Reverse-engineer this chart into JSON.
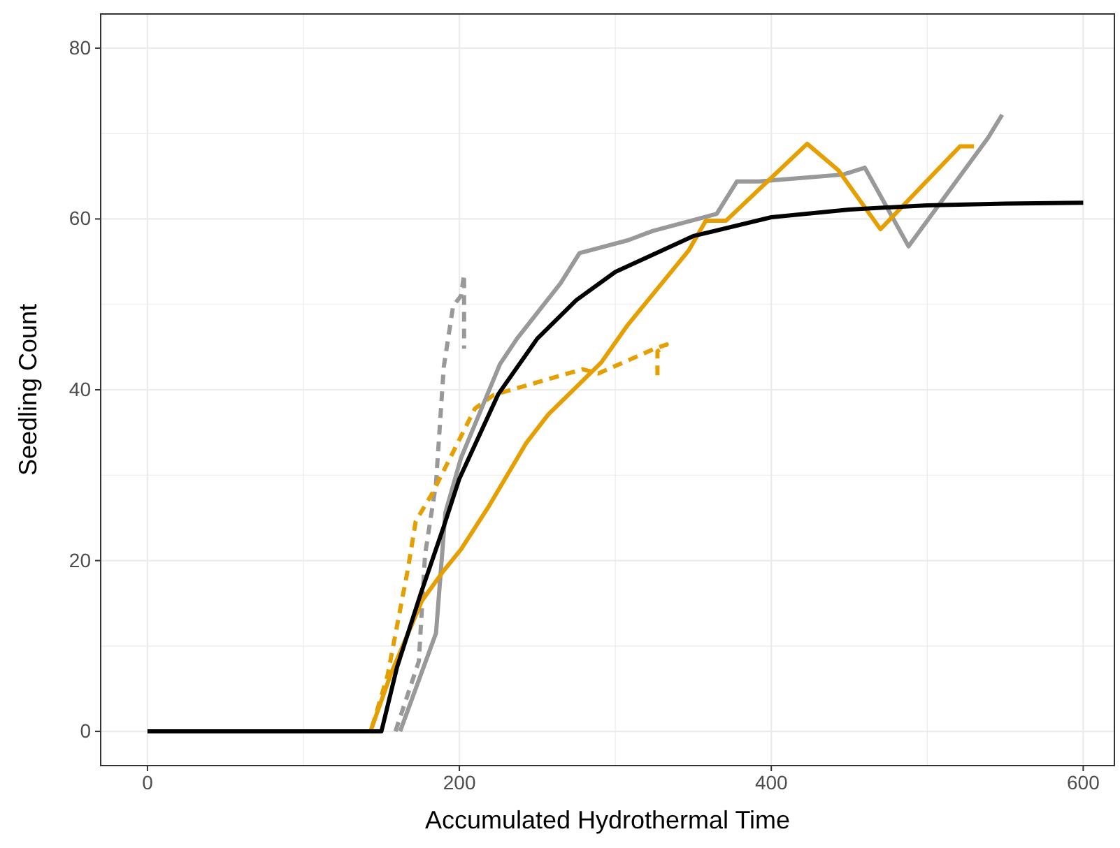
{
  "chart_data": {
    "type": "line",
    "xlabel": "Accumulated Hydrothermal Time",
    "ylabel": "Seedling Count",
    "xlim": [
      -30,
      620
    ],
    "ylim": [
      -4,
      84
    ],
    "xticks": [
      0,
      {
        "value": 100,
        "label": null
      },
      200,
      {
        "value": 300,
        "label": null
      },
      400,
      {
        "value": 500,
        "label": null
      },
      600
    ],
    "yticks": [
      0,
      {
        "value": 10,
        "label": null
      },
      20,
      {
        "value": 30,
        "label": null
      },
      40,
      {
        "value": 50,
        "label": null
      },
      60,
      {
        "value": 70,
        "label": null
      },
      80
    ],
    "grid": true,
    "marker": "none",
    "series": [
      {
        "color": "#999999",
        "line_style": "dashed",
        "x": [
          159,
          174,
          178,
          185,
          190,
          196,
          201,
          203,
          203
        ],
        "values": [
          0,
          8.2,
          20.7,
          29,
          42.7,
          49.8,
          51,
          53.5,
          44.8
        ]
      },
      {
        "color": "#e69f00",
        "line_style": "dashed",
        "x": [
          144,
          154,
          167,
          172,
          183,
          210,
          222,
          279,
          289,
          325,
          333,
          327,
          327
        ],
        "values": [
          0.5,
          6.6,
          19,
          24.6,
          28,
          37.8,
          39.4,
          42.4,
          41.9,
          44.8,
          45.3,
          44.5,
          41
        ]
      },
      {
        "color": "#999999",
        "line_style": "solid",
        "x": [
          162,
          185,
          191,
          201,
          226,
          237,
          265,
          277,
          308,
          324,
          365,
          378,
          392,
          446,
          460,
          488,
          539,
          548
        ],
        "values": [
          0,
          11.5,
          25.6,
          32,
          43,
          46,
          52.5,
          56,
          57.5,
          58.6,
          60.6,
          64.4,
          64.4,
          65.2,
          66,
          56.8,
          69.5,
          72.2
        ]
      },
      {
        "color": "#e69f00",
        "line_style": "solid",
        "x": [
          143,
          156,
          176,
          189,
          201,
          219,
          243,
          257,
          291,
          308,
          347,
          358,
          371,
          423,
          443,
          470,
          521,
          530
        ],
        "values": [
          0,
          6.7,
          15.3,
          18.6,
          21.3,
          26.4,
          33.8,
          37.1,
          43.2,
          47.6,
          56.3,
          59.8,
          59.8,
          68.8,
          65.7,
          58.8,
          68.5,
          68.5
        ]
      },
      {
        "color": "#000000",
        "line_style": "solid",
        "x": [
          0,
          150,
          160,
          175,
          190,
          200,
          225,
          250,
          275,
          300,
          350,
          400,
          450,
          500,
          550,
          600
        ],
        "values": [
          0,
          0,
          7.5,
          16,
          24,
          29.6,
          39.5,
          46,
          50.5,
          53.8,
          58,
          60.2,
          61.1,
          61.6,
          61.8,
          61.9
        ]
      }
    ]
  }
}
